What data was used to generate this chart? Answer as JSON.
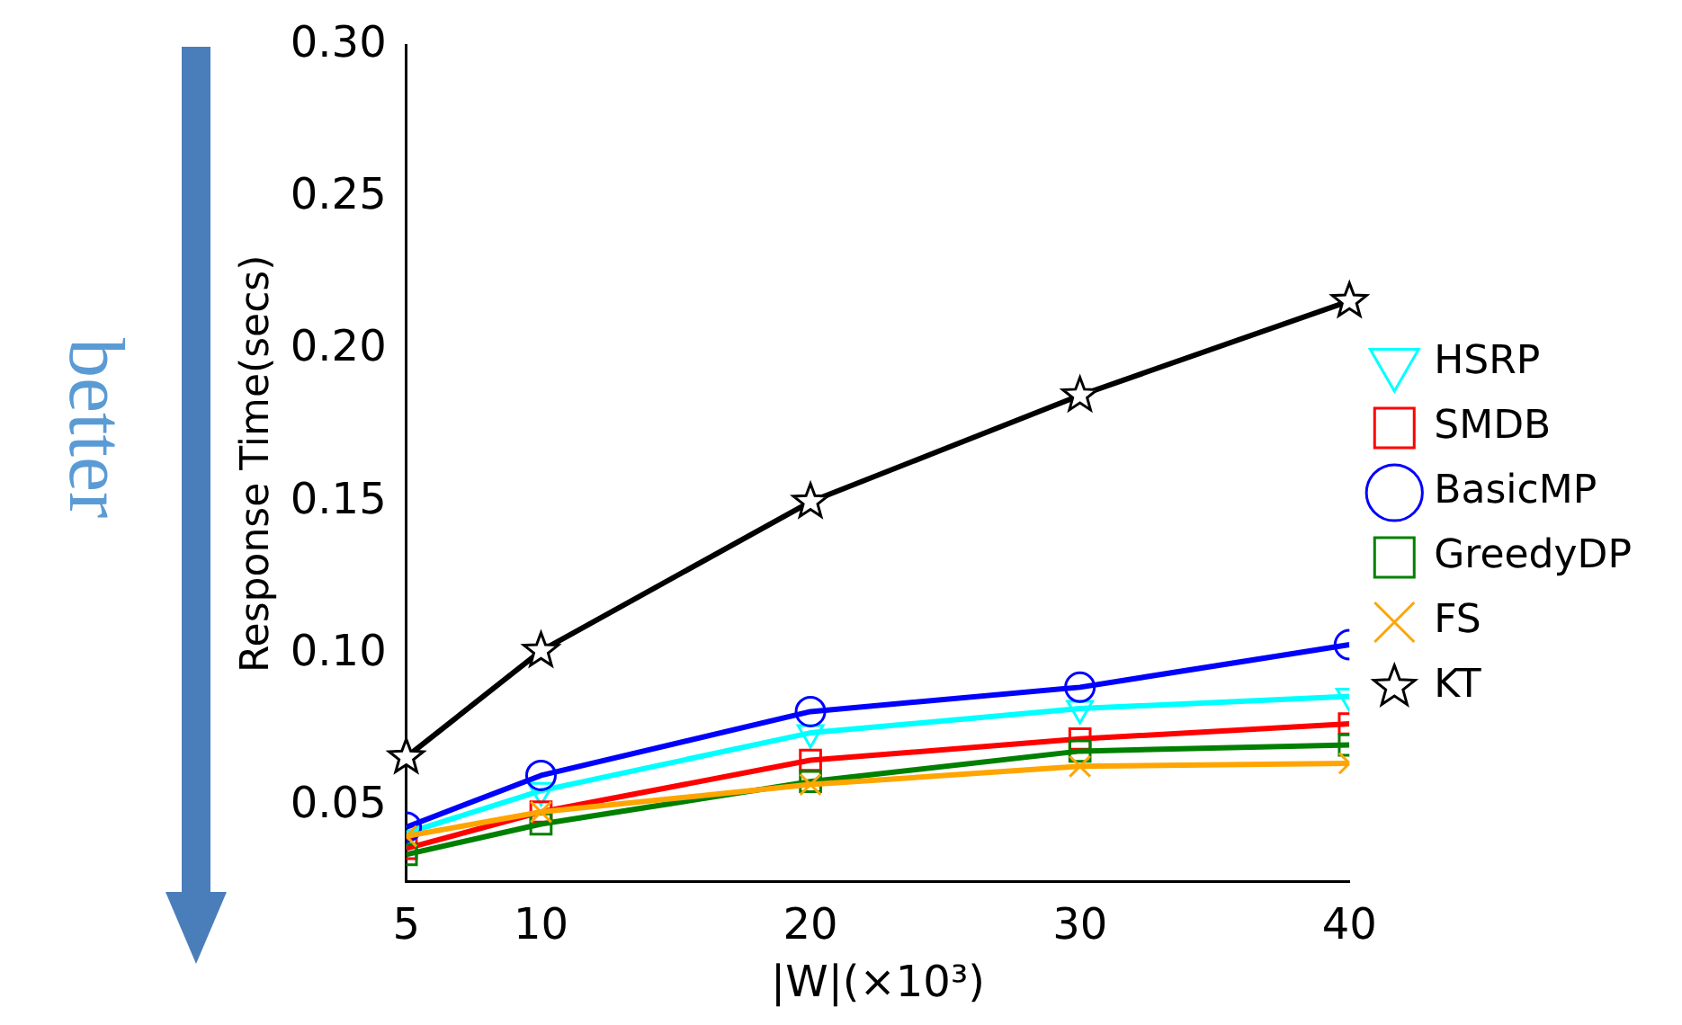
{
  "chart_data": {
    "type": "line",
    "xlabel": "|W|(×10³)",
    "ylabel": "Response Time(secs)",
    "x": [
      5,
      10,
      20,
      30,
      40
    ],
    "xlim": [
      5,
      40
    ],
    "xticks": [
      5,
      10,
      20,
      30,
      40
    ],
    "ylim": [
      0.025,
      0.3
    ],
    "yticks": [
      {
        "value": 0.05,
        "label": "0.05"
      },
      {
        "value": 0.1,
        "label": "0.10"
      },
      {
        "value": 0.15,
        "label": "0.15"
      },
      {
        "value": 0.2,
        "label": "0.20"
      },
      {
        "value": 0.25,
        "label": "0.25"
      },
      {
        "value": 0.3,
        "label": "0.30"
      }
    ],
    "grid": false,
    "legend": "right",
    "annotations": [
      "better"
    ],
    "series": [
      {
        "name": "HSRP",
        "color": "#00ffff",
        "marker": "triangle",
        "values": [
          0.041,
          0.055,
          0.074,
          0.082,
          0.086
        ]
      },
      {
        "name": "SMDB",
        "color": "#ff0000",
        "marker": "square",
        "values": [
          0.036,
          0.048,
          0.065,
          0.072,
          0.077
        ]
      },
      {
        "name": "BasicMP",
        "color": "#0000ff",
        "marker": "circle",
        "values": [
          0.043,
          0.06,
          0.081,
          0.089,
          0.103
        ]
      },
      {
        "name": "GreedyDP",
        "color": "#008000",
        "marker": "square",
        "values": [
          0.034,
          0.044,
          0.058,
          0.068,
          0.07
        ]
      },
      {
        "name": "FS",
        "color": "#ffa500",
        "marker": "cross",
        "values": [
          0.04,
          0.048,
          0.057,
          0.063,
          0.064
        ]
      },
      {
        "name": "KT",
        "color": "#000000",
        "marker": "star",
        "values": [
          0.066,
          0.101,
          0.15,
          0.185,
          0.216
        ]
      }
    ]
  }
}
